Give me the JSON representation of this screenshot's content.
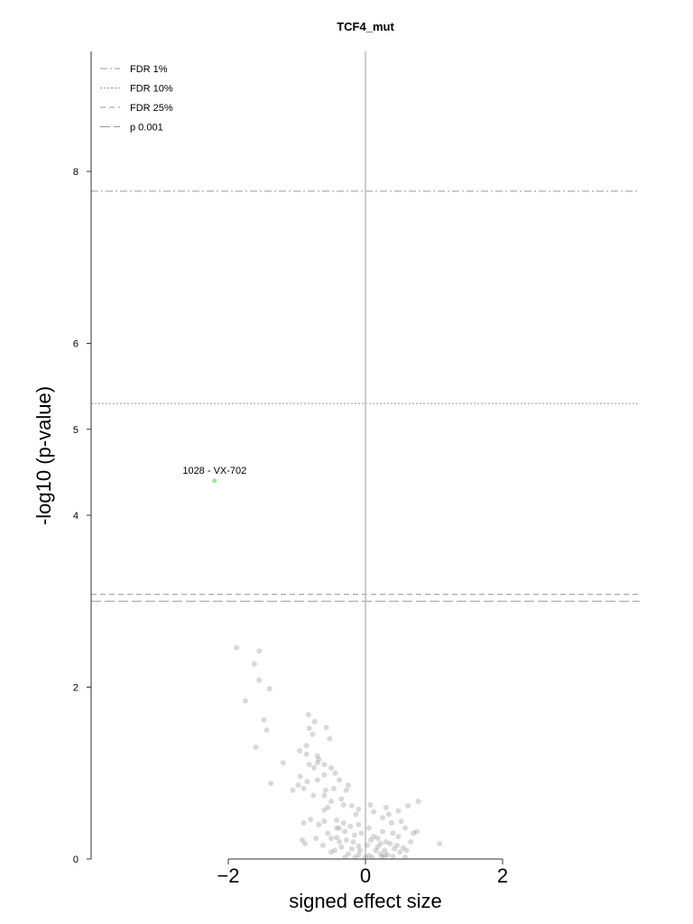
{
  "chart_data": {
    "type": "scatter",
    "title": "TCF4_mut",
    "xlabel": "signed effect size",
    "ylabel": "-log10 (p-value)",
    "xlim": [
      -4,
      4
    ],
    "ylim": [
      0,
      9.4
    ],
    "xticks": [
      -2,
      0,
      2
    ],
    "yticks": [
      0,
      2,
      4,
      5,
      6,
      8
    ],
    "grid": false,
    "legend_position": "top-left",
    "thresholds": [
      {
        "name": "FDR 1%",
        "y": 7.77,
        "style": "dashdot"
      },
      {
        "name": "FDR 10%",
        "y": 5.3,
        "style": "dotted"
      },
      {
        "name": "FDR 25%",
        "y": 3.08,
        "style": "dashed"
      },
      {
        "name": "p 0.001",
        "y": 3.0,
        "style": "longdash"
      }
    ],
    "highlight": {
      "label": "1028 - VX-702",
      "x": -2.2,
      "y": 4.4,
      "color": "#90ee90"
    },
    "points": [
      [
        -1.88,
        2.46
      ],
      [
        -1.55,
        2.42
      ],
      [
        -1.62,
        2.27
      ],
      [
        -1.55,
        2.08
      ],
      [
        -1.4,
        1.98
      ],
      [
        -1.75,
        1.84
      ],
      [
        -1.48,
        1.62
      ],
      [
        -1.44,
        1.5
      ],
      [
        -1.6,
        1.3
      ],
      [
        -0.83,
        1.68
      ],
      [
        -0.74,
        1.6
      ],
      [
        -0.82,
        1.52
      ],
      [
        -0.77,
        1.45
      ],
      [
        -0.57,
        1.53
      ],
      [
        -0.52,
        1.4
      ],
      [
        -0.86,
        1.32
      ],
      [
        -0.96,
        1.26
      ],
      [
        -0.86,
        1.22
      ],
      [
        -0.68,
        1.16
      ],
      [
        -0.6,
        1.1
      ],
      [
        -0.7,
        1.12
      ],
      [
        -0.75,
        1.06
      ],
      [
        -0.82,
        1.1
      ],
      [
        -0.5,
        1.06
      ],
      [
        -0.44,
        1.0
      ],
      [
        -0.6,
        0.98
      ],
      [
        -0.38,
        0.92
      ],
      [
        -0.25,
        0.86
      ],
      [
        -0.95,
        0.96
      ],
      [
        -1.2,
        1.12
      ],
      [
        -0.7,
        0.92
      ],
      [
        -0.85,
        0.9
      ],
      [
        -0.9,
        0.82
      ],
      [
        -0.98,
        0.86
      ],
      [
        -1.38,
        0.88
      ],
      [
        -1.06,
        0.8
      ],
      [
        -0.58,
        0.8
      ],
      [
        -0.46,
        0.82
      ],
      [
        -0.6,
        0.74
      ],
      [
        -0.76,
        0.74
      ],
      [
        -0.35,
        0.7
      ],
      [
        -0.5,
        0.67
      ],
      [
        -0.32,
        0.63
      ],
      [
        -0.2,
        0.62
      ],
      [
        -0.6,
        0.57
      ],
      [
        -0.1,
        0.58
      ],
      [
        0.3,
        0.6
      ],
      [
        0.07,
        0.63
      ],
      [
        0.12,
        0.55
      ],
      [
        0.25,
        0.48
      ],
      [
        0.34,
        0.52
      ],
      [
        0.48,
        0.56
      ],
      [
        0.62,
        0.62
      ],
      [
        0.77,
        0.67
      ],
      [
        0.52,
        0.44
      ],
      [
        -0.6,
        0.44
      ],
      [
        -0.42,
        0.45
      ],
      [
        -0.8,
        0.46
      ],
      [
        -0.9,
        0.42
      ],
      [
        -0.68,
        0.4
      ],
      [
        -0.32,
        0.42
      ],
      [
        -0.22,
        0.38
      ],
      [
        -0.1,
        0.4
      ],
      [
        0.05,
        0.36
      ],
      [
        -0.3,
        0.32
      ],
      [
        -0.16,
        0.28
      ],
      [
        0.12,
        0.26
      ],
      [
        0.25,
        0.32
      ],
      [
        0.4,
        0.3
      ],
      [
        0.58,
        0.36
      ],
      [
        -0.55,
        0.3
      ],
      [
        -0.5,
        0.24
      ],
      [
        -0.28,
        0.22
      ],
      [
        -0.38,
        0.2
      ],
      [
        -0.42,
        0.25
      ],
      [
        -0.18,
        0.2
      ],
      [
        0.03,
        0.16
      ],
      [
        0.22,
        0.18
      ],
      [
        0.3,
        0.2
      ],
      [
        0.46,
        0.16
      ],
      [
        0.66,
        0.2
      ],
      [
        -0.92,
        0.22
      ],
      [
        -0.88,
        0.18
      ],
      [
        -0.62,
        0.16
      ],
      [
        -0.35,
        0.14
      ],
      [
        -0.2,
        0.12
      ],
      [
        -0.08,
        0.1
      ],
      [
        0.15,
        0.1
      ],
      [
        0.28,
        0.1
      ],
      [
        0.42,
        0.12
      ],
      [
        0.5,
        0.08
      ],
      [
        0.6,
        0.1
      ],
      [
        -0.5,
        0.08
      ],
      [
        -0.25,
        0.06
      ],
      [
        -0.1,
        0.05
      ],
      [
        0.05,
        0.04
      ],
      [
        0.22,
        0.06
      ],
      [
        0.32,
        0.05
      ],
      [
        -0.72,
        0.24
      ],
      [
        -0.45,
        0.1
      ],
      [
        0.18,
        0.24
      ],
      [
        0.38,
        0.42
      ],
      [
        0.7,
        0.3
      ],
      [
        1.08,
        0.18
      ],
      [
        0.75,
        0.32
      ],
      [
        0.48,
        0.26
      ],
      [
        0.08,
        0.22
      ],
      [
        -0.06,
        0.3
      ],
      [
        0.0,
        0.02
      ],
      [
        0.1,
        0.02
      ],
      [
        0.24,
        0.02
      ],
      [
        0.28,
        0.04
      ],
      [
        -0.15,
        0.02
      ],
      [
        0.4,
        0.03
      ],
      [
        -0.3,
        0.02
      ],
      [
        0.58,
        0.02
      ],
      [
        -0.1,
        0.15
      ],
      [
        0.36,
        0.18
      ],
      [
        0.18,
        0.14
      ],
      [
        -0.42,
        0.36
      ],
      [
        -0.14,
        0.52
      ],
      [
        -0.55,
        0.6
      ],
      [
        -0.28,
        0.8
      ],
      [
        -0.7,
        1.2
      ],
      [
        -0.38,
        0.36
      ],
      [
        0.55,
        0.13
      ]
    ]
  }
}
